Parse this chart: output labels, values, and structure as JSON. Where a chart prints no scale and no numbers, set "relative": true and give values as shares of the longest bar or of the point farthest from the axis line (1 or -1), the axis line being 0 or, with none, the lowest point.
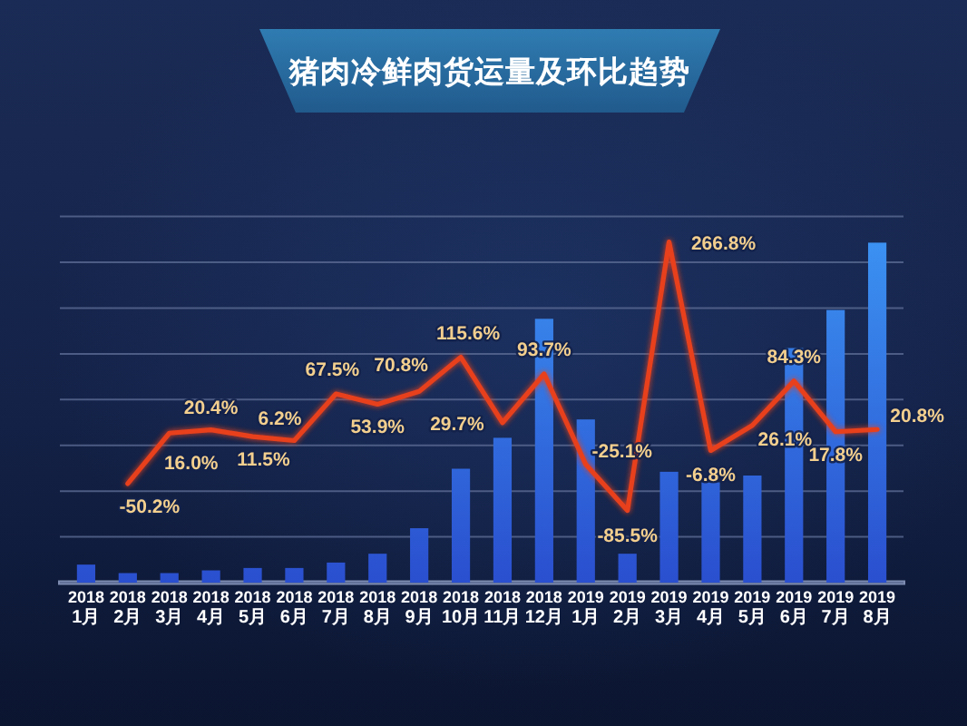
{
  "chart_data": [
    {
      "type": "bar",
      "title": "猪肉冷鲜肉货运量及环比趋势",
      "categories": [
        "2018\n1月",
        "2018\n2月",
        "2018\n3月",
        "2018\n4月",
        "2018\n5月",
        "2018\n6月",
        "2018\n7月",
        "2018\n8月",
        "2018\n9月",
        "2018\n10月",
        "2018\n11月",
        "2018\n12月",
        "2019\n1月",
        "2019\n2月",
        "2019\n3月",
        "2019\n4月",
        "2019\n5月",
        "2019\n6月",
        "2019\n7月",
        "2019\n8月"
      ],
      "relative": true,
      "color": "#2a4fcf",
      "values": [
        0.053,
        0.028,
        0.028,
        0.036,
        0.043,
        0.043,
        0.059,
        0.085,
        0.16,
        0.335,
        0.426,
        0.776,
        0.48,
        0.085,
        0.326,
        0.295,
        0.315,
        0.69,
        0.802,
        1
      ]
    },
    {
      "type": "line",
      "categories": [
        null,
        null,
        null,
        null,
        null,
        null,
        null,
        null,
        null,
        null,
        null,
        null,
        null,
        null,
        null,
        null,
        null,
        null,
        null,
        null
      ],
      "color": "#e8401c",
      "values": [
        null,
        -50.2,
        16.0,
        20.4,
        11.5,
        6.2,
        67.5,
        53.9,
        70.8,
        115.6,
        29.7,
        93.7,
        -25.1,
        -85.5,
        266.8,
        -6.8,
        26.1,
        84.3,
        17.8,
        20.8
      ],
      "value_labels": [
        null,
        "-50.2%",
        "16.0%",
        "20.4%",
        "11.5%",
        "6.2%",
        "67.5%",
        "53.9%",
        "70.8%",
        "115.6%",
        "29.7%",
        "93.7%",
        "-25.1%",
        "-85.5%",
        "266.8%",
        "-6.8%",
        "26.1%",
        "84.3%",
        "17.8%",
        "20.8%"
      ],
      "ylim": [
        -180,
        300
      ],
      "yticks": [
        {
          "value": -180,
          "label": null
        },
        {
          "value": -120,
          "label": null
        },
        {
          "value": -60,
          "label": null
        },
        {
          "value": 0,
          "label": null
        },
        {
          "value": 60,
          "label": null
        },
        {
          "value": 120,
          "label": null
        },
        {
          "value": 180,
          "label": null
        },
        {
          "value": 240,
          "label": null
        },
        {
          "value": 300,
          "label": null
        }
      ],
      "grid": true
    }
  ]
}
